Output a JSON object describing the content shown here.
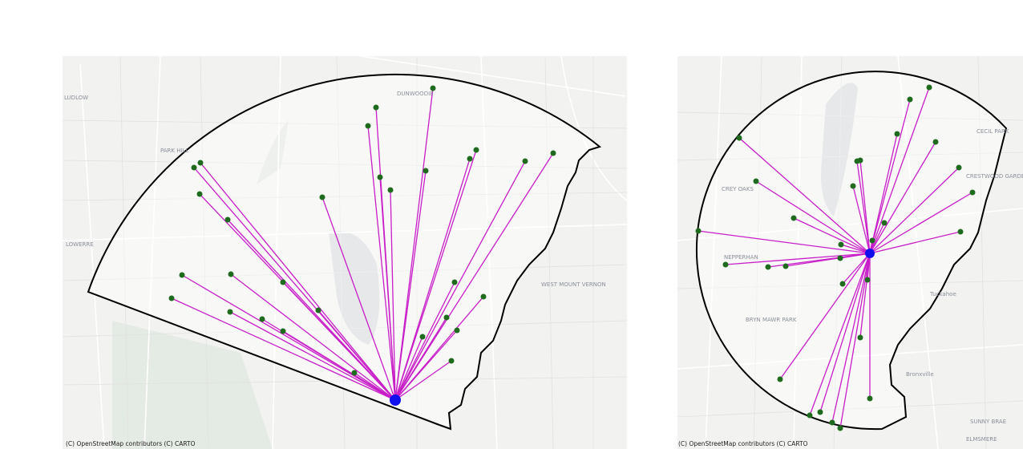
{
  "panels": [
    {
      "attribution": "(C) OpenStreetMap contributors (C) CARTO",
      "labels": [
        "LUDLOW",
        "DUNWOODIE",
        "PARK HILL",
        "LOWERRE",
        "WEST MOUNT VERNON"
      ]
    },
    {
      "attribution": "(C) OpenStreetMap contributors (C) CARTO",
      "labels": [
        "CREY OAKS",
        "NEPPERHAN",
        "BRYN MAWR PARK",
        "CRESTWOOD GARDENS",
        "CECIL PARK",
        "Tuckahoe",
        "Bronxville",
        "SUNNY BRAE",
        "ELMSMERE"
      ]
    }
  ]
}
